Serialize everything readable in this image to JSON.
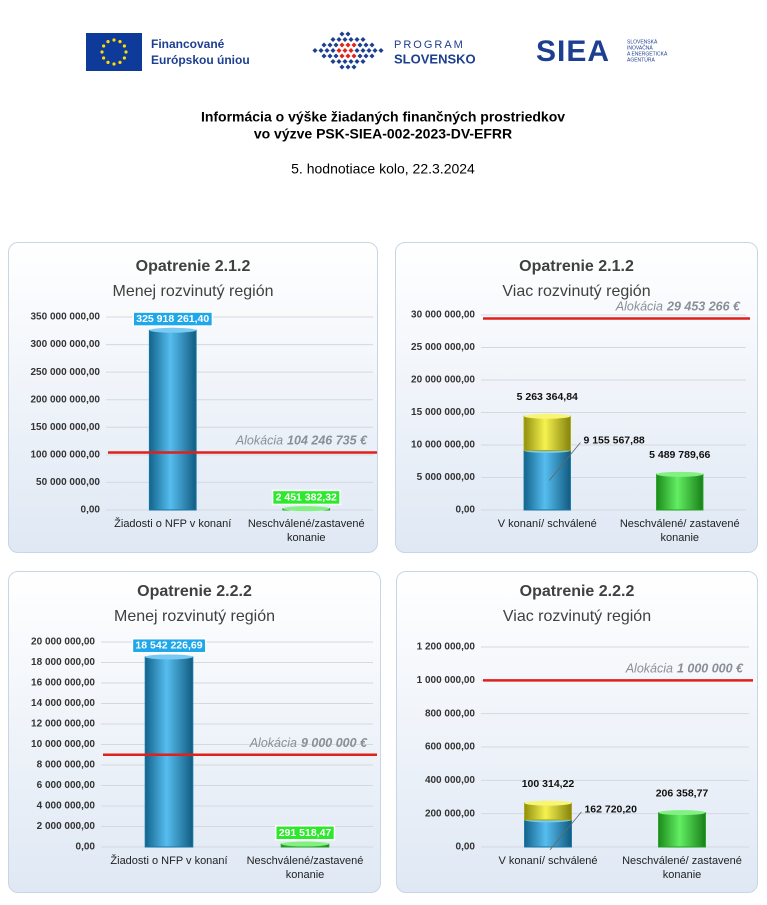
{
  "header": {
    "eu_text": [
      "Financované",
      "Európskou úniou"
    ],
    "program": [
      "PROGRAM",
      "SLOVENSKO"
    ],
    "siea": "SIEA",
    "siea_sub": [
      "SLOVENSKÁ",
      "INOVAČNÁ",
      "A ENERGETICKÁ",
      "AGENTÚRA"
    ],
    "title": [
      "Informácia o výške žiadaných finančných prostriedkov",
      "vo výzve PSK-SIEA-002-2023-DV-EFRR"
    ],
    "subtitle": "5. hodnotiace kolo, 22.3.2024"
  },
  "chart_data": [
    {
      "type": "bar",
      "stacked": false,
      "label_style": "boxed",
      "grid": true,
      "title": "Opatrenie 2.1.2",
      "subtitle": "Menej rozvinutý región",
      "categories": [
        "Žiadosti o NFP v konaní",
        "Neschválené/zastavené konanie"
      ],
      "series": [
        {
          "colors": [
            "#1ea7ea",
            "#2ee82e"
          ],
          "values": [
            325918261.4,
            2451382.32
          ],
          "value_labels": [
            "325 918 261,40",
            "2 451 382,32"
          ]
        }
      ],
      "ylim": [
        0,
        350000000
      ],
      "yticks": [
        {
          "value": 0,
          "label": "0,00"
        },
        {
          "value": 50000000,
          "label": "50 000 000,00"
        },
        {
          "value": 100000000,
          "label": "100 000 000,00"
        },
        {
          "value": 150000000,
          "label": "150 000 000,00"
        },
        {
          "value": 200000000,
          "label": "200 000 000,00"
        },
        {
          "value": 250000000,
          "label": "250 000 000,00"
        },
        {
          "value": 300000000,
          "label": "300 000 000,00"
        },
        {
          "value": 350000000,
          "label": "350 000 000,00"
        }
      ],
      "allocation": {
        "label": "Alokácia",
        "value": 104246735,
        "value_label": "104 246 735 €",
        "color": "#e0201a"
      }
    },
    {
      "type": "bar",
      "stacked": true,
      "label_style": "plain",
      "grid": true,
      "title": "Opatrenie 2.1.2",
      "subtitle": "Viac rozvinutý región",
      "categories": [
        "V konaní/ schválené",
        "Neschválené/ zastavené konanie"
      ],
      "series": [
        {
          "colors": [
            "#1ea7ea",
            "#2ee82e"
          ],
          "values": [
            9155567.88,
            5489789.66
          ],
          "value_labels": [
            "9 155 567,88",
            "5 489 789,66"
          ]
        },
        {
          "color": "#f2ee16",
          "values": [
            5263364.84,
            null
          ],
          "value_labels": [
            "5 263 364,84",
            null
          ]
        }
      ],
      "ylim": [
        0,
        30000000
      ],
      "yticks": [
        {
          "value": 0,
          "label": "0,00"
        },
        {
          "value": 5000000,
          "label": "5 000 000,00"
        },
        {
          "value": 10000000,
          "label": "10 000 000,00"
        },
        {
          "value": 15000000,
          "label": "15 000 000,00"
        },
        {
          "value": 20000000,
          "label": "20 000 000,00"
        },
        {
          "value": 25000000,
          "label": "25 000 000,00"
        },
        {
          "value": 30000000,
          "label": "30 000 000,00"
        }
      ],
      "allocation": {
        "label": "Alokácia",
        "value": 29453266,
        "value_label": "29 453 266 €",
        "color": "#e0201a"
      }
    },
    {
      "type": "bar",
      "stacked": false,
      "label_style": "boxed",
      "grid": true,
      "title": "Opatrenie 2.2.2",
      "subtitle": "Menej rozvinutý región",
      "categories": [
        "Žiadosti o NFP v konaní",
        "Neschválené/zastavené konanie"
      ],
      "series": [
        {
          "colors": [
            "#1ea7ea",
            "#2ee82e"
          ],
          "values": [
            18542226.69,
            291518.47
          ],
          "value_labels": [
            "18 542 226,69",
            "291 518,47"
          ]
        }
      ],
      "ylim": [
        0,
        20000000
      ],
      "yticks": [
        {
          "value": 0,
          "label": "0,00"
        },
        {
          "value": 2000000,
          "label": "2 000 000,00"
        },
        {
          "value": 4000000,
          "label": "4 000 000,00"
        },
        {
          "value": 6000000,
          "label": "6 000 000,00"
        },
        {
          "value": 8000000,
          "label": "8 000 000,00"
        },
        {
          "value": 10000000,
          "label": "10 000 000,00"
        },
        {
          "value": 12000000,
          "label": "12 000 000,00"
        },
        {
          "value": 14000000,
          "label": "14 000 000,00"
        },
        {
          "value": 16000000,
          "label": "16 000 000,00"
        },
        {
          "value": 18000000,
          "label": "18 000 000,00"
        },
        {
          "value": 20000000,
          "label": "20 000 000,00"
        }
      ],
      "allocation": {
        "label": "Alokácia",
        "value": 9000000,
        "value_label": "9 000 000 €",
        "color": "#e0201a"
      }
    },
    {
      "type": "bar",
      "stacked": true,
      "label_style": "plain",
      "grid": true,
      "title": "Opatrenie 2.2.2",
      "subtitle": "Viac rozvinutý región",
      "categories": [
        "V konaní/ schválené",
        "Neschválené/ zastavené konanie"
      ],
      "series": [
        {
          "colors": [
            "#1ea7ea",
            "#2ee82e"
          ],
          "values": [
            162720.2,
            206358.77
          ],
          "value_labels": [
            "162 720,20",
            "206 358,77"
          ]
        },
        {
          "color": "#f2ee16",
          "values": [
            100314.22,
            null
          ],
          "value_labels": [
            "100 314,22",
            null
          ]
        }
      ],
      "ylim": [
        0,
        1200000
      ],
      "yticks": [
        {
          "value": 0,
          "label": "0,00"
        },
        {
          "value": 200000,
          "label": "200 000,00"
        },
        {
          "value": 400000,
          "label": "400 000,00"
        },
        {
          "value": 600000,
          "label": "600 000,00"
        },
        {
          "value": 800000,
          "label": "800 000,00"
        },
        {
          "value": 1000000,
          "label": "1 000 000,00"
        },
        {
          "value": 1200000,
          "label": "1 200 000,00"
        }
      ],
      "allocation": {
        "label": "Alokácia",
        "value": 1000000,
        "value_label": "1 000 000 €",
        "color": "#e0201a"
      }
    }
  ]
}
